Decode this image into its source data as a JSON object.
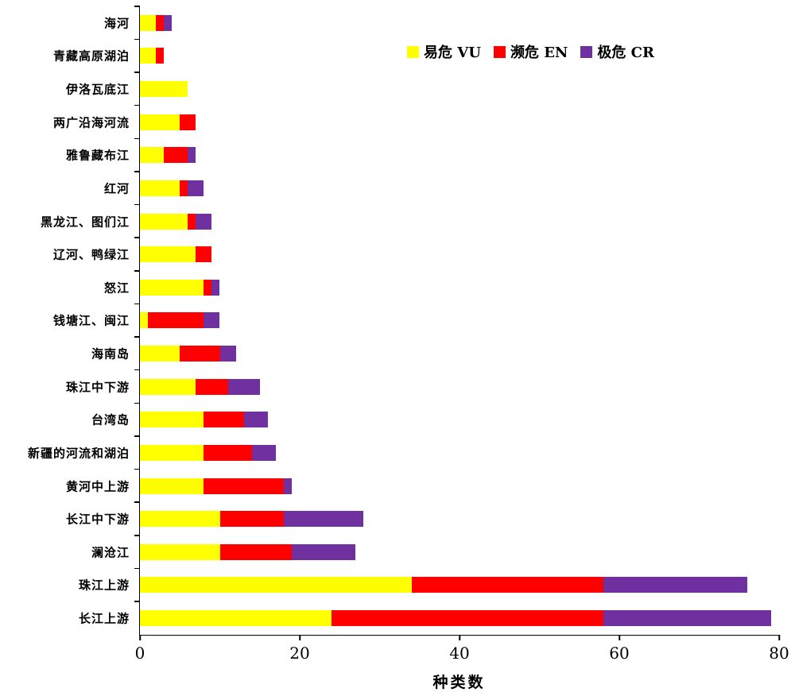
{
  "figure": {
    "background": "#ffffff",
    "axis_color": "#000000"
  },
  "chart_data": {
    "type": "bar",
    "orientation": "horizontal",
    "stacked": true,
    "title": "",
    "xlabel": "种类数",
    "ylabel": "",
    "xlim": [
      0,
      80
    ],
    "xticks": [
      0,
      20,
      40,
      60,
      80
    ],
    "grid": false,
    "legend_position": "inside-top-right",
    "categories": [
      "海河",
      "青藏高原湖泊",
      "伊洛瓦底江",
      "两广沿海河流",
      "雅鲁藏布江",
      "红河",
      "黑龙江、图们江",
      "辽河、鸭绿江",
      "怒江",
      "钱塘江、闽江",
      "海南岛",
      "珠江中下游",
      "台湾岛",
      "新疆的河流和湖泊",
      "黄河中上游",
      "长江中下游",
      "澜沧江",
      "珠江上游",
      "长江上游"
    ],
    "series": [
      {
        "name": "易危 VU",
        "color": "#FFFF00",
        "values": [
          2,
          2,
          6,
          5,
          3,
          5,
          6,
          7,
          8,
          1,
          5,
          7,
          8,
          8,
          8,
          10,
          10,
          34,
          24
        ]
      },
      {
        "name": "濒危 EN",
        "color": "#FF0000",
        "values": [
          1,
          1,
          0,
          2,
          3,
          1,
          1,
          2,
          1,
          7,
          5,
          4,
          5,
          6,
          10,
          8,
          9,
          24,
          34
        ]
      },
      {
        "name": "极危 CR",
        "color": "#7030A0",
        "values": [
          1,
          0,
          0,
          0,
          1,
          2,
          2,
          0,
          1,
          2,
          2,
          4,
          3,
          3,
          1,
          10,
          8,
          18,
          21
        ]
      }
    ]
  }
}
